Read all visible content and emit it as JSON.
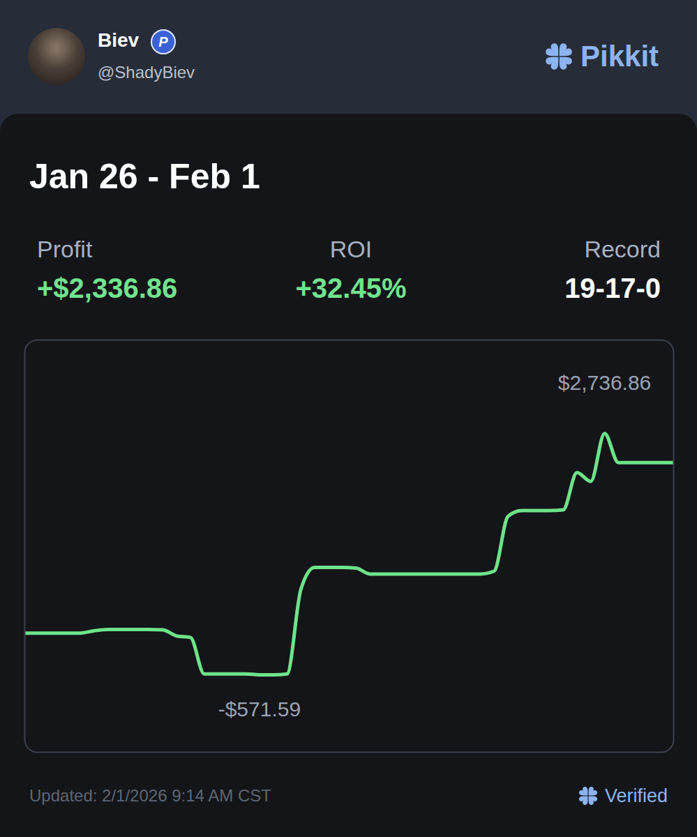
{
  "header": {
    "name": "Biev",
    "badge": "P",
    "handle": "@ShadyBiev",
    "brand": "Pikkit"
  },
  "card": {
    "title": "Jan 26 - Feb 1",
    "stats": [
      {
        "label": "Profit",
        "value": "+$2,336.86",
        "color": "#72e38f"
      },
      {
        "label": "ROI",
        "value": "+32.45%",
        "color": "#72e38f"
      },
      {
        "label": "Record",
        "value": "19-17-0",
        "color": "#ffffff"
      }
    ],
    "footer": {
      "updated": "Updated: 2/1/2026 9:14 AM CST",
      "status": "Verified"
    }
  },
  "chart_data": {
    "type": "line",
    "categories": [
      null,
      null,
      null,
      null,
      null,
      null,
      null,
      null,
      null,
      null,
      null,
      null,
      null,
      null,
      null,
      null,
      null,
      null,
      null,
      null,
      null,
      null,
      null,
      null,
      null,
      null,
      null,
      null,
      null,
      null,
      null,
      null,
      null,
      null,
      null,
      null,
      null,
      null,
      null,
      null,
      null,
      null,
      null,
      null,
      null,
      null,
      null,
      null
    ],
    "values": [
      0,
      0,
      0,
      0,
      0,
      30,
      50,
      50,
      50,
      50,
      45,
      -40,
      -60,
      -560,
      -560,
      -560,
      -560,
      -571.59,
      -571.59,
      -560,
      600,
      900,
      900,
      900,
      890,
      810,
      810,
      810,
      810,
      810,
      810,
      810,
      810,
      810,
      850,
      1600,
      1680,
      1680,
      1680,
      1690,
      2200,
      2080,
      2736.86,
      2336.86,
      2336.86,
      2336.86,
      2336.86,
      2336.86
    ],
    "color": "#6ee38a",
    "ylim": [
      -1634,
      4018
    ],
    "yticks": [],
    "grid": false,
    "tick_labels": false,
    "annotations": [
      {
        "label": "$2,736.86",
        "value": 2736.86
      },
      {
        "label": "-$571.59",
        "value": -571.59
      }
    ]
  }
}
